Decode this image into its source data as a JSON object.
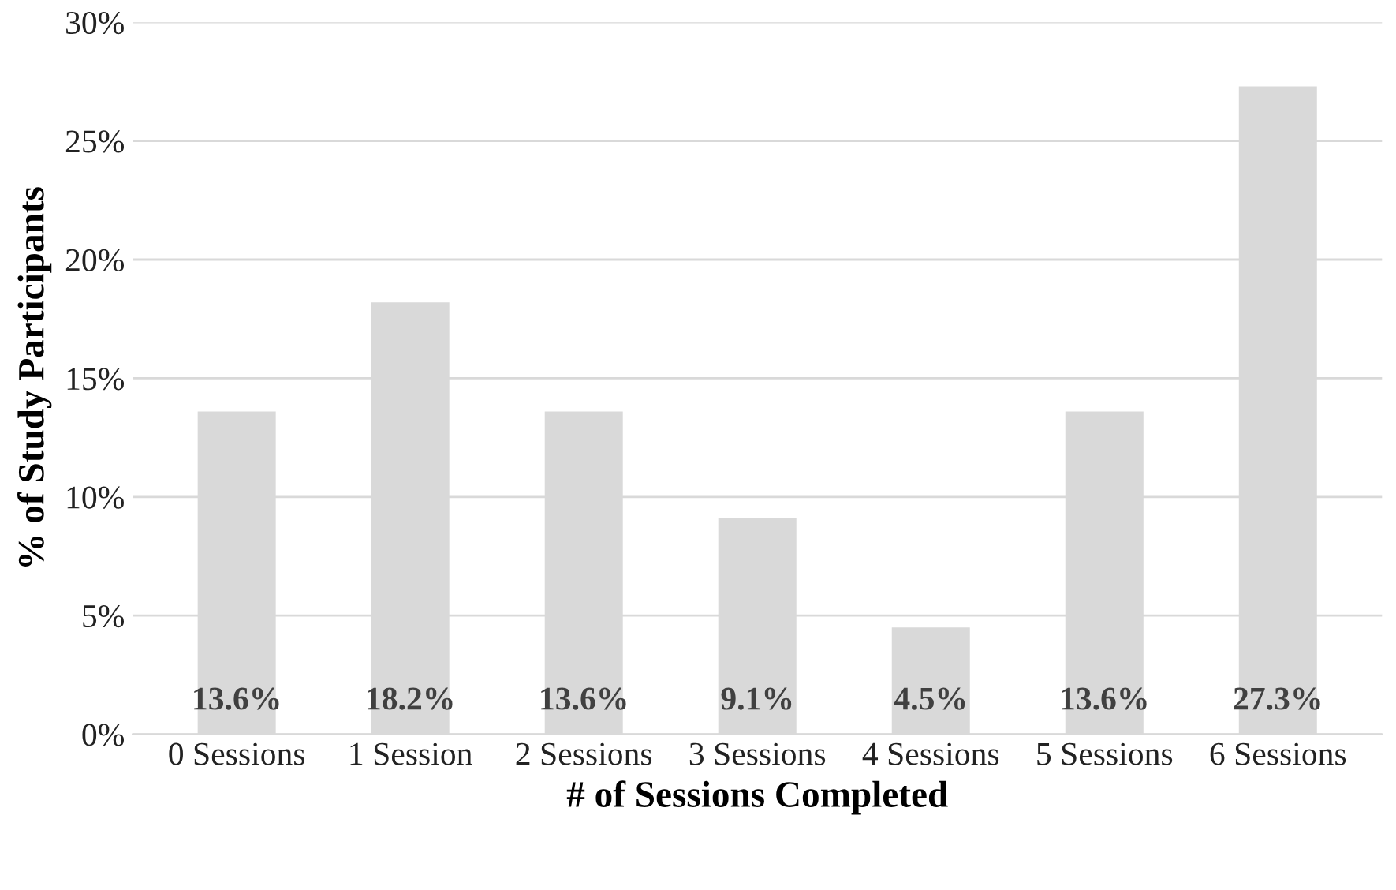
{
  "chart_data": {
    "type": "bar",
    "xlabel": "# of Sessions Completed",
    "ylabel": "% of Study Participants",
    "categories": [
      "0 Sessions",
      "1 Session",
      "2 Sessions",
      "3 Sessions",
      "4 Sessions",
      "5 Sessions",
      "6 Sessions"
    ],
    "values": [
      13.6,
      18.2,
      13.6,
      9.1,
      4.5,
      13.6,
      27.3
    ],
    "color": "#d9d9d9",
    "value_labels": [
      "13.6%",
      "18.2%",
      "13.6%",
      "9.1%",
      "4.5%",
      "13.6%",
      "27.3%"
    ],
    "ylim": [
      0,
      30
    ],
    "yticks": [
      {
        "value": 0,
        "label": "0%"
      },
      {
        "value": 5,
        "label": "5%"
      },
      {
        "value": 10,
        "label": "10%"
      },
      {
        "value": 15,
        "label": "15%"
      },
      {
        "value": 20,
        "label": "20%"
      },
      {
        "value": 25,
        "label": "25%"
      },
      {
        "value": 30,
        "label": "30%"
      }
    ],
    "grid": "y"
  }
}
